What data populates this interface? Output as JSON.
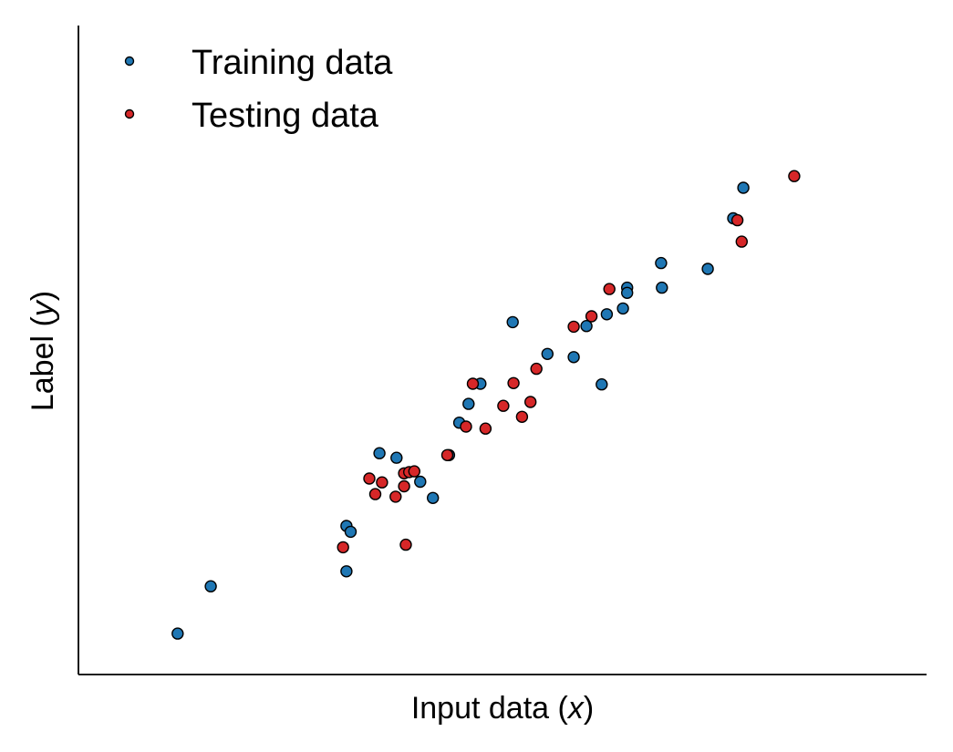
{
  "chart_data": {
    "type": "scatter",
    "title": "",
    "xlabel": {
      "prefix": "Input data (",
      "var": "x",
      "suffix": ")"
    },
    "ylabel": {
      "prefix": "Label (",
      "var": "y",
      "suffix": ")"
    },
    "xlim": [
      0,
      10
    ],
    "ylim": [
      0,
      10
    ],
    "xticks": false,
    "yticks": false,
    "grid": false,
    "legend": {
      "position": "top-left"
    },
    "series": [
      {
        "name": "Training data",
        "color": "#1f77b4",
        "points": [
          [
            1.17,
            0.63
          ],
          [
            1.56,
            1.36
          ],
          [
            3.16,
            1.59
          ],
          [
            3.16,
            2.29
          ],
          [
            3.21,
            2.2
          ],
          [
            3.55,
            3.41
          ],
          [
            3.75,
            3.34
          ],
          [
            4.03,
            2.97
          ],
          [
            4.18,
            2.72
          ],
          [
            4.37,
            3.38
          ],
          [
            4.49,
            3.88
          ],
          [
            4.6,
            4.17
          ],
          [
            4.74,
            4.48
          ],
          [
            5.12,
            5.43
          ],
          [
            5.53,
            4.94
          ],
          [
            5.84,
            4.89
          ],
          [
            5.99,
            5.37
          ],
          [
            6.23,
            5.55
          ],
          [
            6.17,
            4.47
          ],
          [
            6.42,
            5.64
          ],
          [
            6.47,
            5.96
          ],
          [
            6.47,
            5.88
          ],
          [
            6.87,
            6.34
          ],
          [
            6.88,
            5.96
          ],
          [
            7.42,
            6.25
          ],
          [
            7.72,
            7.03
          ],
          [
            7.84,
            7.5
          ]
        ]
      },
      {
        "name": "Testing data",
        "color": "#d62728",
        "points": [
          [
            3.12,
            1.96
          ],
          [
            3.43,
            3.02
          ],
          [
            3.5,
            2.78
          ],
          [
            3.58,
            2.96
          ],
          [
            3.74,
            2.74
          ],
          [
            3.84,
            2.9
          ],
          [
            3.84,
            3.1
          ],
          [
            3.9,
            3.12
          ],
          [
            3.96,
            3.13
          ],
          [
            3.86,
            2.0
          ],
          [
            4.35,
            3.38
          ],
          [
            4.57,
            3.82
          ],
          [
            4.65,
            4.48
          ],
          [
            4.8,
            3.79
          ],
          [
            5.01,
            4.14
          ],
          [
            5.13,
            4.49
          ],
          [
            5.23,
            3.97
          ],
          [
            5.33,
            4.2
          ],
          [
            5.4,
            4.71
          ],
          [
            5.84,
            5.36
          ],
          [
            6.05,
            5.52
          ],
          [
            6.26,
            5.94
          ],
          [
            7.77,
            7.0
          ],
          [
            7.82,
            6.67
          ],
          [
            8.44,
            7.68
          ]
        ]
      }
    ]
  }
}
